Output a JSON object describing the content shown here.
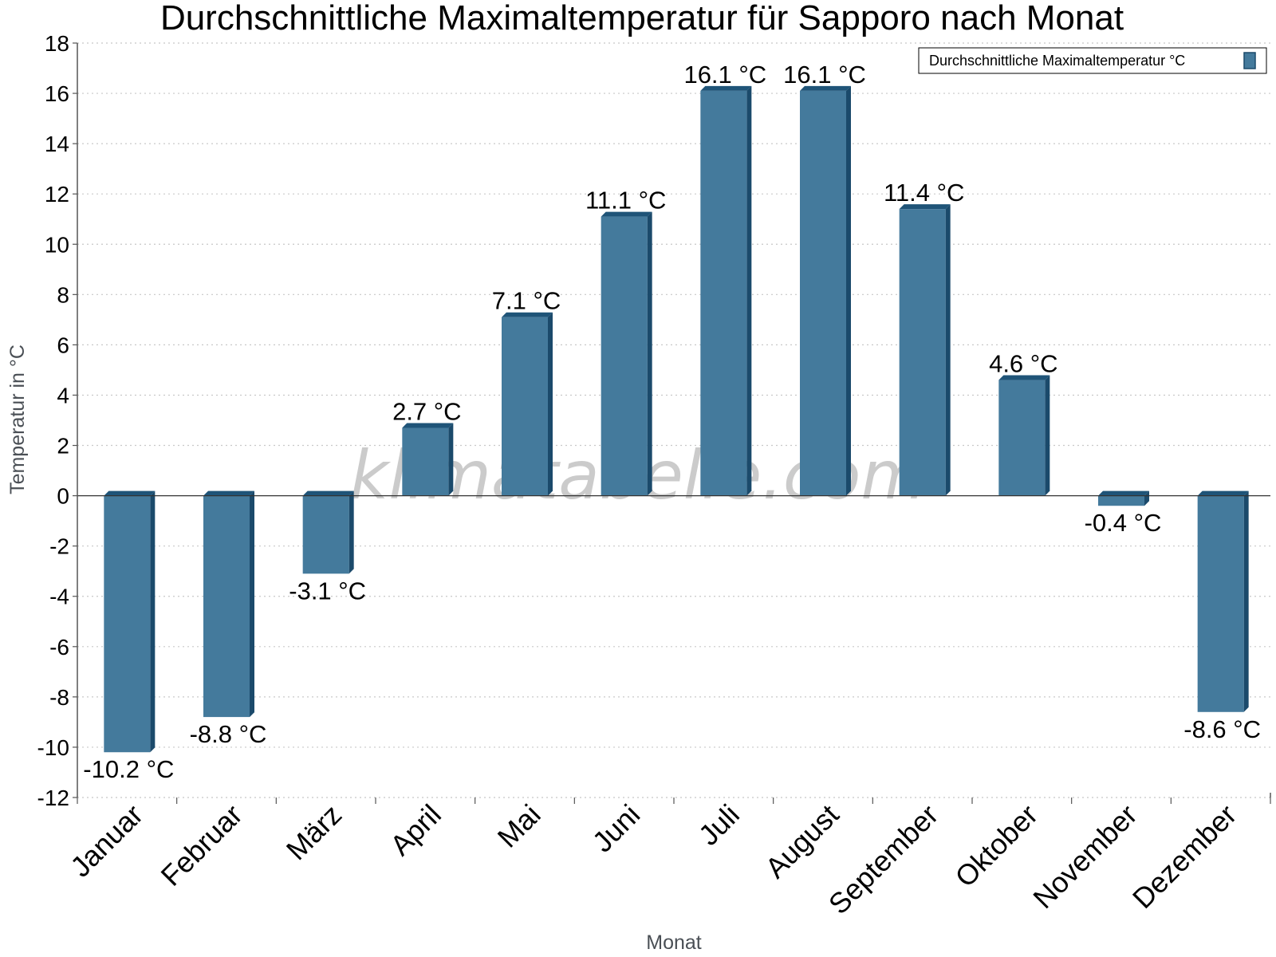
{
  "chart_data": {
    "type": "bar",
    "title": "Durchschnittliche Maximaltemperatur für Sapporo nach Monat",
    "xlabel": "Monat",
    "ylabel": "Temperatur in °C",
    "ylim": [
      -12,
      18
    ],
    "ytick_step": 2,
    "grid": true,
    "legend_position": "top-right",
    "categories": [
      "Januar",
      "Februar",
      "März",
      "April",
      "Mai",
      "Juni",
      "Juli",
      "August",
      "September",
      "Oktober",
      "November",
      "Dezember"
    ],
    "series": [
      {
        "name": "Durchschnittliche Maximaltemperatur °C",
        "values": [
          -10.2,
          -8.8,
          -3.1,
          2.7,
          7.1,
          11.1,
          16.1,
          16.1,
          11.4,
          4.6,
          -0.4,
          -8.6
        ],
        "labels": [
          "-10.2 °C",
          "-8.8 °C",
          "-3.1 °C",
          "2.7 °C",
          "7.1 °C",
          "11.1 °C",
          "16.1 °C",
          "16.1 °C",
          "11.4 °C",
          "4.6 °C",
          "-0.4 °C",
          "-8.6 °C"
        ]
      }
    ],
    "watermark": "klimatabelle.com"
  },
  "colors": {
    "bar_face": "#447a9c",
    "bar_side": "#1b4a6b",
    "bar_top": "#1f5478",
    "grid": "#c8c8c8",
    "axis": "#555555"
  }
}
